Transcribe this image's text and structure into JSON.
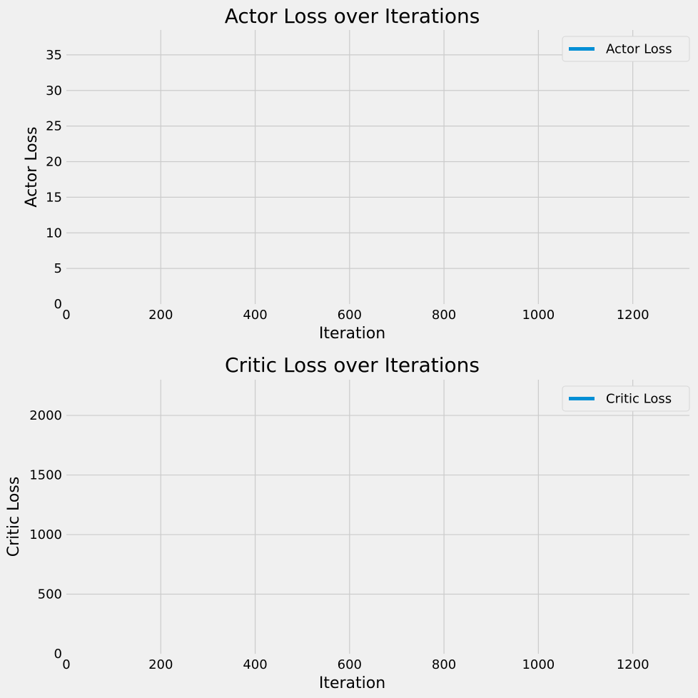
{
  "chart_data": [
    {
      "type": "line",
      "title": "Actor Loss over Iterations",
      "xlabel": "Iteration",
      "ylabel": "Actor Loss",
      "xlim": [
        0,
        1320
      ],
      "ylim": [
        0,
        38.5
      ],
      "x_ticks": [
        0,
        200,
        400,
        600,
        800,
        1000,
        1200
      ],
      "y_ticks": [
        0,
        5,
        10,
        15,
        20,
        25,
        30,
        35
      ],
      "grid": true,
      "legend_position": "top-right",
      "series": [
        {
          "name": "Actor Loss",
          "color": "#008fd5",
          "x": [],
          "y": []
        }
      ]
    },
    {
      "type": "line",
      "title": "Critic Loss over Iterations",
      "xlabel": "Iteration",
      "ylabel": "Critic Loss",
      "xlim": [
        0,
        1320
      ],
      "ylim": [
        0,
        2300
      ],
      "x_ticks": [
        0,
        200,
        400,
        600,
        800,
        1000,
        1200
      ],
      "y_ticks": [
        0,
        500,
        1000,
        1500,
        2000
      ],
      "grid": true,
      "legend_position": "top-right",
      "series": [
        {
          "name": "Critic Loss",
          "color": "#008fd5",
          "x": [],
          "y": []
        }
      ]
    }
  ]
}
